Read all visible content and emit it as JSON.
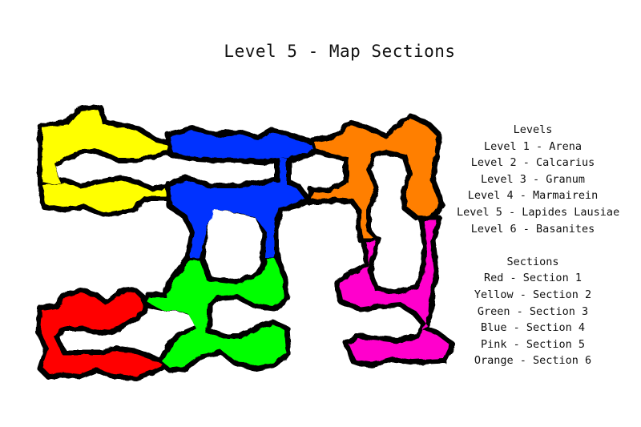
{
  "title": "Level 5 - Map Sections",
  "levels": {
    "heading": "Levels",
    "items": [
      "Level 1 - Arena",
      "Level 2 - Calcarius",
      "Level 3 - Granum",
      "Level 4 - Marmairein",
      "Level 5 - Lapides Lausiae",
      "Level 6 - Basanites"
    ]
  },
  "sections": {
    "heading": "Sections",
    "items": [
      "Red - Section 1",
      "Yellow - Section 2",
      "Green - Section 3",
      "Blue - Section 4",
      "Pink - Section 5",
      "Orange - Section 6"
    ]
  },
  "colors": {
    "red": "#ff0000",
    "yellow": "#ffff00",
    "green": "#00ff00",
    "blue": "#0033ff",
    "pink": "#ff00cc",
    "orange": "#ff7f00",
    "outline": "#000000"
  }
}
